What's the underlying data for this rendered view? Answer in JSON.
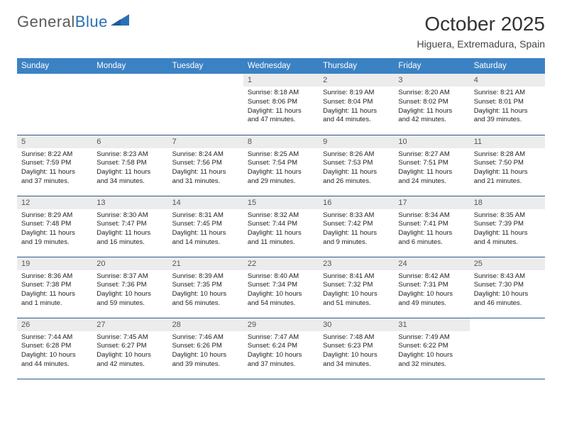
{
  "brand": {
    "part1": "General",
    "part2": "Blue"
  },
  "title": "October 2025",
  "location": "Higuera, Extremadura, Spain",
  "colors": {
    "header_bg": "#3b82c4",
    "header_text": "#ffffff",
    "daynum_bg": "#ececec",
    "daynum_text": "#555555",
    "body_text": "#222222",
    "rule": "#2a5a8a",
    "brand_gray": "#5a5a5a",
    "brand_blue": "#2a6fb5"
  },
  "weekdays": [
    "Sunday",
    "Monday",
    "Tuesday",
    "Wednesday",
    "Thursday",
    "Friday",
    "Saturday"
  ],
  "weeks": [
    [
      null,
      null,
      null,
      {
        "n": "1",
        "sr": "8:18 AM",
        "ss": "8:06 PM",
        "dl": "11 hours and 47 minutes."
      },
      {
        "n": "2",
        "sr": "8:19 AM",
        "ss": "8:04 PM",
        "dl": "11 hours and 44 minutes."
      },
      {
        "n": "3",
        "sr": "8:20 AM",
        "ss": "8:02 PM",
        "dl": "11 hours and 42 minutes."
      },
      {
        "n": "4",
        "sr": "8:21 AM",
        "ss": "8:01 PM",
        "dl": "11 hours and 39 minutes."
      }
    ],
    [
      {
        "n": "5",
        "sr": "8:22 AM",
        "ss": "7:59 PM",
        "dl": "11 hours and 37 minutes."
      },
      {
        "n": "6",
        "sr": "8:23 AM",
        "ss": "7:58 PM",
        "dl": "11 hours and 34 minutes."
      },
      {
        "n": "7",
        "sr": "8:24 AM",
        "ss": "7:56 PM",
        "dl": "11 hours and 31 minutes."
      },
      {
        "n": "8",
        "sr": "8:25 AM",
        "ss": "7:54 PM",
        "dl": "11 hours and 29 minutes."
      },
      {
        "n": "9",
        "sr": "8:26 AM",
        "ss": "7:53 PM",
        "dl": "11 hours and 26 minutes."
      },
      {
        "n": "10",
        "sr": "8:27 AM",
        "ss": "7:51 PM",
        "dl": "11 hours and 24 minutes."
      },
      {
        "n": "11",
        "sr": "8:28 AM",
        "ss": "7:50 PM",
        "dl": "11 hours and 21 minutes."
      }
    ],
    [
      {
        "n": "12",
        "sr": "8:29 AM",
        "ss": "7:48 PM",
        "dl": "11 hours and 19 minutes."
      },
      {
        "n": "13",
        "sr": "8:30 AM",
        "ss": "7:47 PM",
        "dl": "11 hours and 16 minutes."
      },
      {
        "n": "14",
        "sr": "8:31 AM",
        "ss": "7:45 PM",
        "dl": "11 hours and 14 minutes."
      },
      {
        "n": "15",
        "sr": "8:32 AM",
        "ss": "7:44 PM",
        "dl": "11 hours and 11 minutes."
      },
      {
        "n": "16",
        "sr": "8:33 AM",
        "ss": "7:42 PM",
        "dl": "11 hours and 9 minutes."
      },
      {
        "n": "17",
        "sr": "8:34 AM",
        "ss": "7:41 PM",
        "dl": "11 hours and 6 minutes."
      },
      {
        "n": "18",
        "sr": "8:35 AM",
        "ss": "7:39 PM",
        "dl": "11 hours and 4 minutes."
      }
    ],
    [
      {
        "n": "19",
        "sr": "8:36 AM",
        "ss": "7:38 PM",
        "dl": "11 hours and 1 minute."
      },
      {
        "n": "20",
        "sr": "8:37 AM",
        "ss": "7:36 PM",
        "dl": "10 hours and 59 minutes."
      },
      {
        "n": "21",
        "sr": "8:39 AM",
        "ss": "7:35 PM",
        "dl": "10 hours and 56 minutes."
      },
      {
        "n": "22",
        "sr": "8:40 AM",
        "ss": "7:34 PM",
        "dl": "10 hours and 54 minutes."
      },
      {
        "n": "23",
        "sr": "8:41 AM",
        "ss": "7:32 PM",
        "dl": "10 hours and 51 minutes."
      },
      {
        "n": "24",
        "sr": "8:42 AM",
        "ss": "7:31 PM",
        "dl": "10 hours and 49 minutes."
      },
      {
        "n": "25",
        "sr": "8:43 AM",
        "ss": "7:30 PM",
        "dl": "10 hours and 46 minutes."
      }
    ],
    [
      {
        "n": "26",
        "sr": "7:44 AM",
        "ss": "6:28 PM",
        "dl": "10 hours and 44 minutes."
      },
      {
        "n": "27",
        "sr": "7:45 AM",
        "ss": "6:27 PM",
        "dl": "10 hours and 42 minutes."
      },
      {
        "n": "28",
        "sr": "7:46 AM",
        "ss": "6:26 PM",
        "dl": "10 hours and 39 minutes."
      },
      {
        "n": "29",
        "sr": "7:47 AM",
        "ss": "6:24 PM",
        "dl": "10 hours and 37 minutes."
      },
      {
        "n": "30",
        "sr": "7:48 AM",
        "ss": "6:23 PM",
        "dl": "10 hours and 34 minutes."
      },
      {
        "n": "31",
        "sr": "7:49 AM",
        "ss": "6:22 PM",
        "dl": "10 hours and 32 minutes."
      },
      null
    ]
  ],
  "labels": {
    "sunrise": "Sunrise:",
    "sunset": "Sunset:",
    "daylight": "Daylight:"
  }
}
